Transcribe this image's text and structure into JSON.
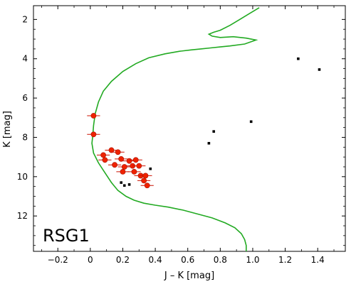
{
  "chart_data": {
    "type": "scatter",
    "title": "",
    "panel_label": "RSG1",
    "xlabel": "J – K [mag]",
    "ylabel": "K [mag]",
    "xlim": [
      -0.35,
      1.57
    ],
    "ylim": [
      13.8,
      1.3
    ],
    "y_inverted": true,
    "grid": false,
    "legend": "none",
    "xticks": [
      -0.2,
      0,
      0.2,
      0.4,
      0.6,
      0.8,
      1.0,
      1.2,
      1.4
    ],
    "xtick_labels": [
      "−0.2",
      "0",
      "0.2",
      "0.4",
      "0.6",
      "0.8",
      "1.0",
      "1.2",
      "1.4"
    ],
    "yticks": [
      2,
      4,
      6,
      8,
      10,
      12
    ],
    "ytick_labels": [
      "2",
      "4",
      "6",
      "8",
      "10",
      "12"
    ],
    "colors": {
      "isochrone": "#22aa22",
      "members": "#ee2200",
      "field": "#000000",
      "errorbar": "#cc1100"
    },
    "isochrone": {
      "x": [
        1.04,
        0.98,
        0.92,
        0.86,
        0.8,
        0.76,
        0.73,
        0.75,
        0.8,
        0.88,
        0.96,
        1.02,
        0.95,
        0.86,
        0.8,
        0.74,
        0.68,
        0.62,
        0.55,
        0.46,
        0.36,
        0.28,
        0.2,
        0.13,
        0.08,
        0.05,
        0.03,
        0.02,
        0.015,
        0.01,
        0.02,
        0.05,
        0.09,
        0.13,
        0.17,
        0.22,
        0.27,
        0.33,
        0.4,
        0.48,
        0.57,
        0.66,
        0.75,
        0.83,
        0.89,
        0.93,
        0.95,
        0.96,
        0.96
      ],
      "y": [
        1.4,
        1.7,
        2.0,
        2.3,
        2.55,
        2.65,
        2.75,
        2.85,
        2.92,
        2.88,
        2.95,
        3.05,
        3.25,
        3.35,
        3.4,
        3.45,
        3.5,
        3.55,
        3.62,
        3.75,
        3.95,
        4.25,
        4.65,
        5.15,
        5.65,
        6.2,
        6.8,
        7.4,
        7.9,
        8.3,
        8.8,
        9.3,
        9.8,
        10.3,
        10.7,
        11.0,
        11.2,
        11.35,
        11.45,
        11.55,
        11.7,
        11.9,
        12.1,
        12.35,
        12.6,
        12.9,
        13.2,
        13.5,
        13.8
      ]
    },
    "series": [
      {
        "x": [
          0.02,
          0.02,
          0.08,
          0.09,
          0.13,
          0.15,
          0.17,
          0.19,
          0.2,
          0.21,
          0.24,
          0.26,
          0.27,
          0.28,
          0.3,
          0.31,
          0.33,
          0.34,
          0.35
        ],
        "y": [
          6.9,
          7.85,
          8.9,
          9.15,
          8.65,
          9.4,
          8.75,
          9.1,
          9.75,
          9.5,
          9.2,
          9.45,
          9.75,
          9.15,
          9.45,
          9.95,
          10.2,
          9.95,
          10.45
        ],
        "xerr": [
          0.04,
          0.04,
          0.04,
          0.04,
          0.04,
          0.04,
          0.04,
          0.04,
          0.04,
          0.04,
          0.04,
          0.04,
          0.04,
          0.04,
          0.04,
          0.04,
          0.04,
          0.04,
          0.04
        ]
      },
      {
        "x": [
          0.19,
          0.21,
          0.24,
          0.37,
          0.73,
          0.76,
          0.99,
          1.28,
          1.41
        ],
        "y": [
          10.3,
          10.45,
          10.4,
          9.6,
          8.3,
          7.7,
          7.2,
          4.0,
          4.55
        ]
      }
    ]
  }
}
